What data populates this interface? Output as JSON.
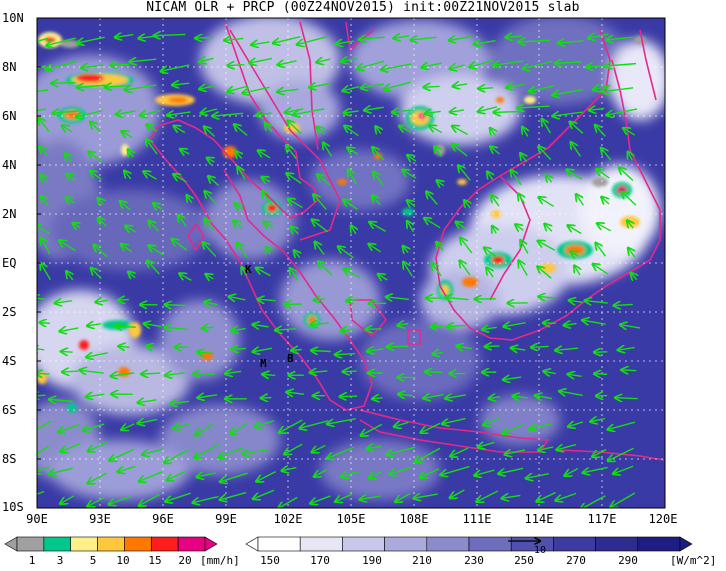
{
  "title": "NICAM OLR + PRCP (00Z24NOV2015) init:00Z21NOV2015 slab",
  "map": {
    "lat_labels": [
      "10N",
      "8N",
      "6N",
      "4N",
      "2N",
      "EQ",
      "2S",
      "4S",
      "6S",
      "8S",
      "10S"
    ],
    "lon_labels": [
      "90E",
      "93E",
      "96E",
      "99E",
      "102E",
      "105E",
      "108E",
      "111E",
      "114E",
      "117E",
      "120E"
    ],
    "station_markers": [
      {
        "label": "K",
        "lon": 100.4,
        "lat": -0.2
      },
      {
        "label": "M",
        "lon": 100.3,
        "lat": -4.0
      },
      {
        "label": "B",
        "lon": 102.3,
        "lat": -3.8
      }
    ],
    "reference_vector_label": "10"
  },
  "colorbar_prcp": {
    "labels": [
      "1",
      "3",
      "5",
      "10",
      "15",
      "20"
    ],
    "unit": "[mm/h]",
    "colors": [
      "#a0a0a0",
      "#00c88c",
      "#fff08c",
      "#ffc83c",
      "#ff7800",
      "#ff1e1e",
      "#e60082"
    ]
  },
  "colorbar_olr": {
    "labels": [
      "150",
      "170",
      "190",
      "210",
      "230",
      "250",
      "270",
      "290"
    ],
    "unit": "[W/m^2]",
    "colors": [
      "#ffffff",
      "#e6e6f5",
      "#c8c8eb",
      "#aaaadc",
      "#8c8ccd",
      "#6e6ebe",
      "#5050af",
      "#3c3ca0",
      "#2d2d91",
      "#1e1e82"
    ]
  },
  "colors": {
    "background_blue": "#3a3aa6",
    "coast": "#e6288c",
    "wind": "#14dc14",
    "grid": "#ffffff"
  }
}
